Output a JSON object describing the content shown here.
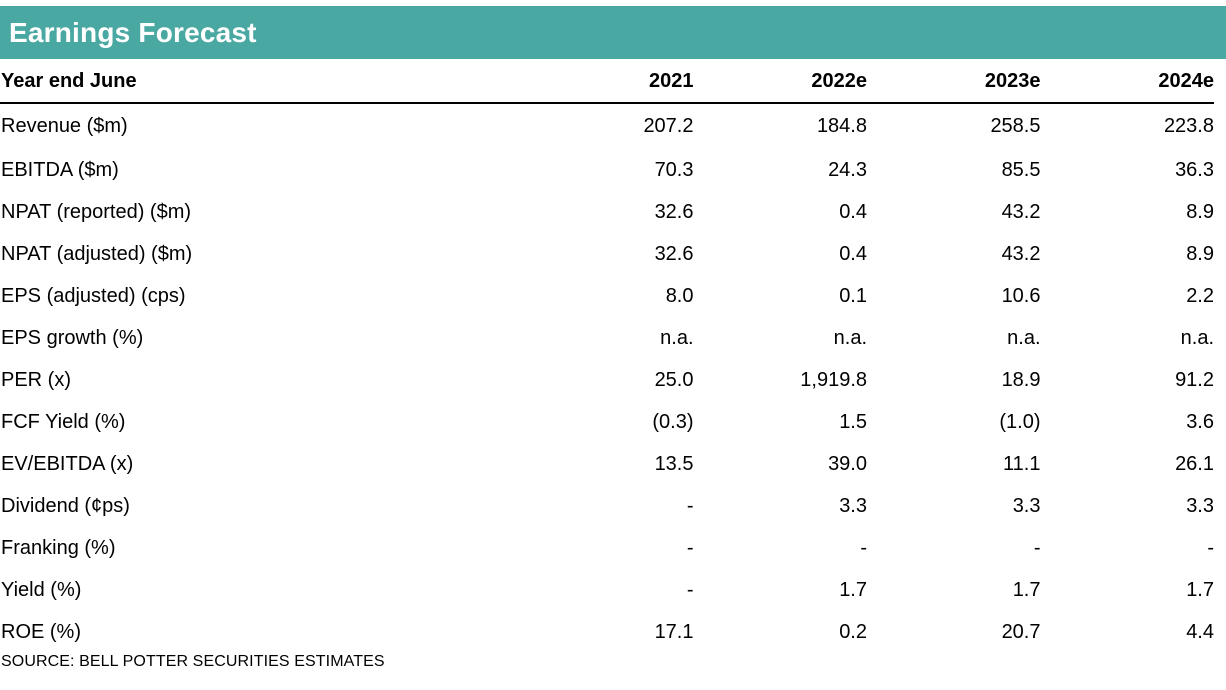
{
  "title": "Earnings Forecast",
  "table": {
    "columns": [
      "Year end June",
      "2021",
      "2022e",
      "2023e",
      "2024e"
    ],
    "rows": [
      {
        "label": "Revenue ($m)",
        "values": [
          "207.2",
          "184.8",
          "258.5",
          "223.8"
        ]
      },
      {
        "label": "EBITDA ($m)",
        "values": [
          "70.3",
          "24.3",
          "85.5",
          "36.3"
        ]
      },
      {
        "label": "NPAT (reported) ($m)",
        "values": [
          "32.6",
          "0.4",
          "43.2",
          "8.9"
        ]
      },
      {
        "label": "NPAT (adjusted) ($m)",
        "values": [
          "32.6",
          "0.4",
          "43.2",
          "8.9"
        ]
      },
      {
        "label": "EPS (adjusted) (cps)",
        "values": [
          "8.0",
          "0.1",
          "10.6",
          "2.2"
        ]
      },
      {
        "label": "EPS growth (%)",
        "values": [
          "n.a.",
          "n.a.",
          "n.a.",
          "n.a."
        ]
      },
      {
        "label": "PER (x)",
        "values": [
          "25.0",
          "1,919.8",
          "18.9",
          "91.2"
        ]
      },
      {
        "label": "FCF Yield (%)",
        "values": [
          "(0.3)",
          "1.5",
          "(1.0)",
          "3.6"
        ]
      },
      {
        "label": "EV/EBITDA (x)",
        "values": [
          "13.5",
          "39.0",
          "11.1",
          "26.1"
        ]
      },
      {
        "label": "Dividend (¢ps)",
        "values": [
          "-",
          "3.3",
          "3.3",
          "3.3"
        ]
      },
      {
        "label": "Franking (%)",
        "values": [
          "-",
          "-",
          "-",
          "-"
        ]
      },
      {
        "label": "Yield (%)",
        "values": [
          "-",
          "1.7",
          "1.7",
          "1.7"
        ]
      },
      {
        "label": "ROE (%)",
        "values": [
          "17.1",
          "0.2",
          "20.7",
          "4.4"
        ]
      }
    ]
  },
  "source": "SOURCE: BELL POTTER SECURITIES ESTIMATES",
  "colors": {
    "title_bar": "#4aa8a3",
    "title_text": "#ffffff"
  }
}
